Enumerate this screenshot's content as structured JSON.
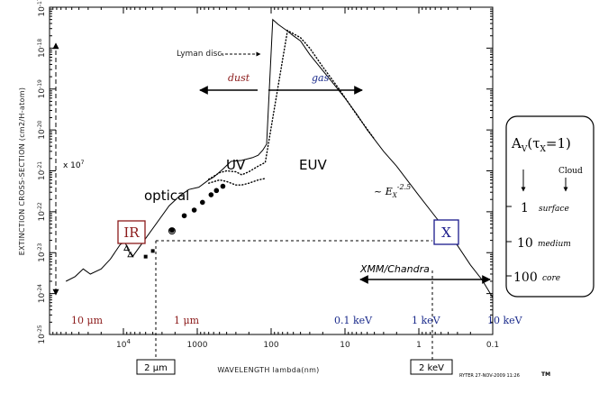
{
  "chart_data": {
    "type": "line",
    "xlabel": "WAVELENGTH lambda(nm)",
    "ylabel": "EXTINCTION CROSS-SECTION (cm2/H-atom)",
    "x_scale": "log, reversed",
    "y_scale": "log",
    "xlim": [
      100000,
      0.1
    ],
    "ylim": [
      1e-25,
      1e-17
    ],
    "x_ticks": [
      {
        "value": 10000,
        "base": "10",
        "exp": "4"
      },
      {
        "value": 1000,
        "label": "1000"
      },
      {
        "value": 100,
        "label": "100"
      },
      {
        "value": 10,
        "label": "10"
      },
      {
        "value": 1,
        "label": "1"
      },
      {
        "value": 0.1,
        "label": "0.1"
      }
    ],
    "y_ticks": [
      {
        "value": 1e-25,
        "exp": "-25"
      },
      {
        "value": 1e-24,
        "exp": "-24"
      },
      {
        "value": 1e-23,
        "exp": "-23"
      },
      {
        "value": 1e-22,
        "exp": "-22"
      },
      {
        "value": 1e-21,
        "exp": "-21"
      },
      {
        "value": 1e-20,
        "exp": "-20"
      },
      {
        "value": 1e-19,
        "exp": "-19"
      },
      {
        "value": 1e-18,
        "exp": "-18"
      },
      {
        "value": 1e-17,
        "exp": "-17"
      }
    ],
    "series": [
      {
        "style": "solid",
        "points": [
          [
            60000,
            2e-24
          ],
          [
            45000,
            2.6e-24
          ],
          [
            35000,
            4e-24
          ],
          [
            28000,
            3e-24
          ],
          [
            20000,
            4e-24
          ],
          [
            15000,
            7e-24
          ],
          [
            11000,
            1.6e-23
          ],
          [
            9500,
            1.8e-23
          ],
          [
            8500,
            1.1e-23
          ],
          [
            7500,
            8e-24
          ],
          [
            2400,
            1.4e-22
          ],
          [
            1700,
            2.5e-22
          ],
          [
            1300,
            3.5e-22
          ],
          [
            950,
            4e-22
          ],
          [
            700,
            6e-22
          ],
          [
            600,
            7e-22
          ],
          [
            450,
            1.1e-21
          ],
          [
            350,
            1.7e-21
          ],
          [
            250,
            1.8e-21
          ],
          [
            180,
            2.1e-21
          ],
          [
            150,
            2.4e-21
          ],
          [
            130,
            3.2e-21
          ],
          [
            115,
            4.5e-21
          ],
          [
            95,
            5e-18
          ],
          [
            80,
            3.8e-18
          ],
          [
            60,
            2.6e-18
          ],
          [
            50,
            2e-18
          ],
          [
            40,
            1.5e-18
          ],
          [
            30,
            7e-19
          ],
          [
            22,
            3.5e-19
          ],
          [
            15,
            1.5e-19
          ],
          [
            10,
            6e-20
          ],
          [
            7,
            2.5e-20
          ],
          [
            5,
            1e-20
          ],
          [
            3,
            3e-21
          ],
          [
            2,
            1.3e-21
          ],
          [
            1,
            2.5e-22
          ],
          [
            0.5,
            5e-23
          ],
          [
            0.3,
            1.5e-23
          ],
          [
            0.2,
            5e-24
          ],
          [
            0.14,
            2.2e-24
          ],
          [
            0.1,
            8e-25
          ]
        ]
      },
      {
        "style": "dotted",
        "points": [
          [
            700,
            6.2e-22
          ],
          [
            500,
            9e-22
          ],
          [
            400,
            1e-21
          ],
          [
            300,
            9.5e-22
          ],
          [
            250,
            8e-22
          ],
          [
            200,
            9.5e-22
          ],
          [
            150,
            1.3e-21
          ],
          [
            120,
            1.6e-21
          ],
          [
            60,
            2.7e-18
          ],
          [
            40,
            1.8e-18
          ],
          [
            30,
            1e-18
          ],
          [
            20,
            3.5e-19
          ],
          [
            12,
            1e-19
          ],
          [
            7,
            2.4e-20
          ],
          [
            4,
            6e-21
          ]
        ]
      },
      {
        "style": "dotted",
        "points": [
          [
            700,
            5e-22
          ],
          [
            500,
            6e-22
          ],
          [
            400,
            5.5e-22
          ],
          [
            300,
            4.5e-22
          ],
          [
            250,
            4.5e-22
          ],
          [
            200,
            5e-22
          ],
          [
            150,
            6e-22
          ],
          [
            120,
            6.5e-22
          ]
        ]
      }
    ],
    "markers": [
      {
        "shape": "triangle",
        "points": [
          [
            10000,
            2.9e-23
          ],
          [
            9000,
            2.7e-23
          ],
          [
            8500,
            2e-23
          ],
          [
            9000,
            1.3e-23
          ],
          [
            8000,
            9e-24
          ]
        ]
      },
      {
        "shape": "square",
        "points": [
          [
            5000,
            8e-24
          ],
          [
            4000,
            1.1e-23
          ]
        ]
      },
      {
        "shape": "dot",
        "points": [
          [
            2200,
            3.5e-23
          ],
          [
            1500,
            8e-23
          ],
          [
            1100,
            1.1e-22
          ],
          [
            850,
            1.7e-22
          ],
          [
            650,
            2.6e-22
          ],
          [
            550,
            3.3e-22
          ],
          [
            450,
            4.2e-22
          ]
        ]
      },
      {
        "shape": "circle",
        "points": [
          [
            2200,
            3.4e-23
          ]
        ]
      }
    ],
    "annotations": {
      "lyman": "Lyman disc.",
      "dust": "dust",
      "gas": "gas",
      "uv": "UV",
      "euv": "EUV",
      "optical": "optical",
      "ir": "IR",
      "x": "X",
      "power_law_prefix": "~ E",
      "power_law_sub": "X",
      "power_law_exp": "-2.5",
      "xmm": "XMM/Chandra",
      "range_factor": "x 10",
      "range_factor_exp": "7",
      "band_10um": "10 μm",
      "band_1um": "1 μm",
      "band_01kev": "0.1 keV",
      "band_1kev": "1 keV",
      "band_10kev": "10 keV",
      "box_2um": "2 μm",
      "box_2kev": "2 keV",
      "credit": "RYTER 27-NOV-2009 11:26",
      "tm": "TM"
    },
    "sidebox": {
      "title_main": "A",
      "title_sub": "V",
      "title_paren_open": "(τ",
      "title_paren_sub": "X",
      "title_paren_close": "=1)",
      "cloud_label": "Cloud",
      "rows": [
        {
          "value": "1",
          "label": "surface"
        },
        {
          "value": "10",
          "label": "medium"
        },
        {
          "value": "100",
          "label": "core"
        }
      ]
    },
    "colors": {
      "ir_box": "#8b1a1a",
      "x_box": "#1a1a8b",
      "dust": "#8b1a1a",
      "gas": "#1a2a8b",
      "micron_band": "#8b1a1a",
      "kev_band": "#1a2a8b"
    },
    "grid": false,
    "legend": "none"
  }
}
